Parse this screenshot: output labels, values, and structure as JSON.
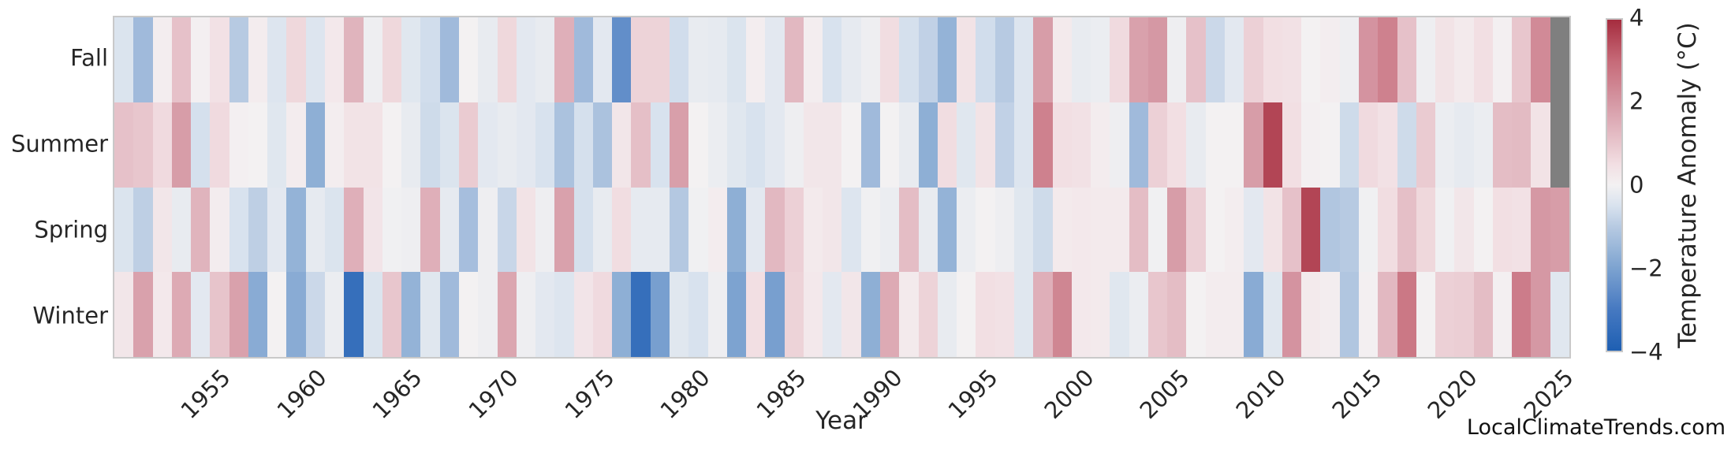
{
  "figure": {
    "background": "#ffffff",
    "watermark": "LocalClimateTrends.com"
  },
  "chart_data": {
    "type": "heatmap",
    "title": "",
    "xlabel": "Year",
    "ylabel": "",
    "colorbar_label": "Temperature Anomaly (°C)",
    "legend_position": "right-colorbar",
    "grid": false,
    "value_range": [
      -4,
      4
    ],
    "missing_value_color": "#7f7f7f",
    "frame_color": "#c9c9c9",
    "colormap": {
      "name": "blue-white-red diverging (vlag-like)",
      "stops": [
        [
          -4.0,
          "#1e5fb2"
        ],
        [
          -3.0,
          "#4679c1"
        ],
        [
          -2.0,
          "#7da3d0"
        ],
        [
          -1.0,
          "#b7cae2"
        ],
        [
          -0.5,
          "#d8e2ee"
        ],
        [
          0.0,
          "#f3f1f2"
        ],
        [
          0.5,
          "#f2dfe3"
        ],
        [
          1.0,
          "#e8c6cd"
        ],
        [
          2.0,
          "#d598a4"
        ],
        [
          3.0,
          "#c66a78"
        ],
        [
          4.0,
          "#a52c3e"
        ]
      ]
    },
    "colorbar_ticks": {
      "labels": [
        "4",
        "2",
        "0",
        "−2",
        "−4"
      ],
      "values": [
        4,
        2,
        0,
        -2,
        -4
      ]
    },
    "rows": [
      "Fall",
      "Summer",
      "Spring",
      "Winter"
    ],
    "years": [
      1950,
      1951,
      1952,
      1953,
      1954,
      1955,
      1956,
      1957,
      1958,
      1959,
      1960,
      1961,
      1962,
      1963,
      1964,
      1965,
      1966,
      1967,
      1968,
      1969,
      1970,
      1971,
      1972,
      1973,
      1974,
      1975,
      1976,
      1977,
      1978,
      1979,
      1980,
      1981,
      1982,
      1983,
      1984,
      1985,
      1986,
      1987,
      1988,
      1989,
      1990,
      1991,
      1992,
      1993,
      1994,
      1995,
      1996,
      1997,
      1998,
      1999,
      2000,
      2001,
      2002,
      2003,
      2004,
      2005,
      2006,
      2007,
      2008,
      2009,
      2010,
      2011,
      2012,
      2013,
      2014,
      2015,
      2016,
      2017,
      2018,
      2019,
      2020,
      2021,
      2022,
      2023,
      2024,
      2025
    ],
    "x_tick_labels": [
      "1955",
      "1960",
      "1965",
      "1970",
      "1975",
      "1980",
      "1985",
      "1990",
      "1995",
      "2000",
      "2005",
      "2010",
      "2015",
      "2020",
      "2025"
    ],
    "x_tick_years": [
      1955,
      1960,
      1965,
      1970,
      1975,
      1980,
      1985,
      1990,
      1995,
      2000,
      2005,
      2010,
      2015,
      2020,
      2025
    ],
    "series": [
      {
        "name": "Fall",
        "values": [
          -0.45,
          -1.4,
          0.1,
          1.1,
          0.05,
          0.45,
          -1.0,
          0.15,
          -0.4,
          0.65,
          -0.4,
          0.25,
          1.4,
          -0.1,
          0.65,
          -0.35,
          -0.6,
          -1.4,
          0.0,
          -0.2,
          0.65,
          -0.3,
          -0.2,
          1.5,
          -1.4,
          -0.3,
          -2.5,
          0.75,
          0.75,
          -0.6,
          -0.2,
          -0.25,
          -0.45,
          0.1,
          -0.3,
          1.3,
          0.1,
          -0.5,
          -0.25,
          -0.1,
          0.55,
          -0.55,
          -0.85,
          -1.6,
          0.4,
          -0.6,
          -1.0,
          -0.4,
          1.9,
          0.2,
          -0.2,
          -0.15,
          0.6,
          1.8,
          2.0,
          -0.1,
          1.1,
          -0.7,
          -0.3,
          0.8,
          0.5,
          0.45,
          0.0,
          0.1,
          -0.1,
          2.1,
          2.5,
          1.1,
          -0.1,
          0.4,
          0.2,
          0.5,
          0.05,
          1.0,
          2.3,
          null
        ]
      },
      {
        "name": "Summer",
        "values": [
          1.1,
          1.0,
          0.6,
          1.9,
          -0.55,
          0.6,
          0.05,
          0.0,
          -0.35,
          0.15,
          -1.7,
          0.1,
          0.4,
          0.4,
          0.0,
          -0.2,
          -0.65,
          -0.45,
          0.9,
          -0.3,
          -0.2,
          -0.3,
          -0.5,
          -1.2,
          -0.55,
          -1.2,
          0.3,
          1.15,
          -0.5,
          1.85,
          0.0,
          -0.15,
          -0.35,
          -0.5,
          -0.3,
          -0.1,
          0.3,
          0.3,
          0.0,
          -1.4,
          0.0,
          -0.2,
          -1.7,
          0.55,
          -0.35,
          0.4,
          -0.85,
          -0.4,
          2.5,
          0.5,
          0.45,
          0.15,
          -0.1,
          -1.4,
          0.8,
          0.5,
          -0.2,
          0.0,
          0.0,
          1.9,
          3.6,
          0.5,
          0.05,
          0.0,
          -0.65,
          0.6,
          0.45,
          -0.65,
          0.9,
          -0.15,
          -0.25,
          -0.15,
          1.2,
          1.25,
          0.4,
          null
        ]
      },
      {
        "name": "Spring",
        "values": [
          -0.45,
          -0.9,
          0.3,
          -0.2,
          1.4,
          0.15,
          -0.5,
          -0.9,
          -0.3,
          -1.6,
          -0.25,
          -0.45,
          1.5,
          0.35,
          -0.05,
          -0.1,
          1.5,
          -0.25,
          -1.3,
          -0.1,
          -0.75,
          0.4,
          -0.1,
          1.8,
          -0.55,
          -0.2,
          0.55,
          -0.25,
          -0.25,
          -1.05,
          -0.05,
          0.15,
          -1.7,
          -0.3,
          1.3,
          0.8,
          0.2,
          0.3,
          -0.4,
          -0.05,
          -0.15,
          1.2,
          -0.2,
          -1.6,
          -0.15,
          0.0,
          -0.1,
          -0.35,
          -0.65,
          0.2,
          0.25,
          0.2,
          0.2,
          1.2,
          -0.05,
          1.9,
          0.8,
          0.0,
          0.1,
          -0.3,
          0.4,
          1.1,
          3.6,
          -1.1,
          -1.0,
          -0.05,
          0.55,
          1.15,
          0.65,
          -0.05,
          0.3,
          0.0,
          0.5,
          0.45,
          2.0,
          1.9
        ]
      },
      {
        "name": "Winter",
        "values": [
          0.3,
          1.8,
          0.25,
          1.6,
          -0.3,
          1.05,
          1.8,
          -1.8,
          0.0,
          -1.8,
          -0.7,
          -0.15,
          -3.4,
          -0.45,
          1.0,
          -1.6,
          -0.35,
          -1.4,
          0.0,
          -0.1,
          1.7,
          -0.1,
          -0.3,
          -0.4,
          0.35,
          0.6,
          -1.7,
          -3.4,
          -2.1,
          -0.35,
          -0.5,
          -0.1,
          -2.0,
          0.5,
          -2.1,
          0.75,
          0.25,
          -0.3,
          0.3,
          -1.7,
          1.6,
          0.2,
          0.75,
          -0.2,
          0.0,
          0.5,
          0.45,
          -0.35,
          1.5,
          2.4,
          0.25,
          0.2,
          -0.35,
          -0.15,
          1.0,
          1.2,
          0.0,
          0.15,
          0.15,
          -1.8,
          -0.35,
          2.1,
          0.2,
          0.1,
          -1.1,
          0.05,
          1.3,
          2.7,
          0.0,
          0.8,
          0.85,
          1.2,
          0.05,
          2.6,
          2.0,
          -0.35
        ]
      }
    ]
  }
}
